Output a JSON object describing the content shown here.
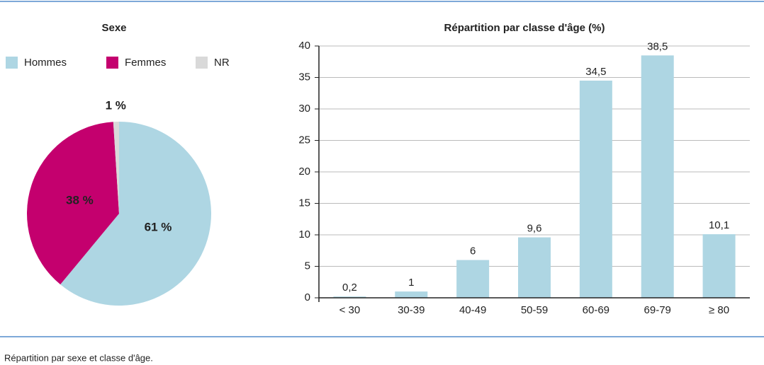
{
  "chart_data": [
    {
      "type": "pie",
      "title": "Sexe",
      "categories": [
        "Hommes",
        "Femmes",
        "NR"
      ],
      "values": [
        61,
        38,
        1
      ],
      "value_labels": [
        "61 %",
        "38 %",
        "1 %"
      ],
      "colors": [
        "#aed6e3",
        "#c4006e",
        "#d9d9d9"
      ]
    },
    {
      "type": "bar",
      "title": "Répartition par classe d'âge (%)",
      "categories": [
        "< 30",
        "30-39",
        "40-49",
        "50-59",
        "60-69",
        "69-79",
        "≥ 80"
      ],
      "values": [
        0.2,
        1,
        6,
        9.6,
        34.5,
        38.5,
        10.1
      ],
      "value_labels": [
        "0,2",
        "1",
        "6",
        "9,6",
        "34,5",
        "38,5",
        "10,1"
      ],
      "color": "#aed6e3",
      "ylim": [
        0,
        40
      ],
      "yticks": [
        0,
        5,
        10,
        15,
        20,
        25,
        30,
        35,
        40
      ],
      "grid": true
    }
  ],
  "caption": "Répartition par sexe et classe d'âge."
}
